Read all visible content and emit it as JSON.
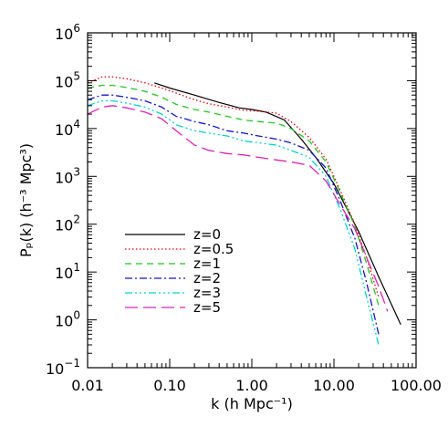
{
  "chart_data": {
    "type": "line",
    "xlabel": "k (h Mpc⁻¹)",
    "ylabel": "Pₚ(k) (h⁻³ Mpc³)",
    "xscale": "log",
    "yscale": "log",
    "xlim": [
      0.01,
      100
    ],
    "ylim": [
      0.1,
      1000000
    ],
    "xticks": [
      0.01,
      0.1,
      1,
      10,
      100
    ],
    "xtick_labels": [
      "0.01",
      "0.10",
      "1.00",
      "10.00",
      "100.00"
    ],
    "yticks": [
      0.1,
      1,
      10,
      100,
      1000,
      10000,
      100000,
      1000000
    ],
    "ytick_labels": [
      {
        "base": "10",
        "exp": "−1"
      },
      {
        "base": "10",
        "exp": "0"
      },
      {
        "base": "10",
        "exp": "1"
      },
      {
        "base": "10",
        "exp": "2"
      },
      {
        "base": "10",
        "exp": "3"
      },
      {
        "base": "10",
        "exp": "4"
      },
      {
        "base": "10",
        "exp": "5"
      },
      {
        "base": "10",
        "exp": "6"
      }
    ],
    "legend_position": "bottom-left",
    "series": [
      {
        "name": "z=0",
        "color": "#000000",
        "dash": "",
        "width": 1.2,
        "x": [
          0.065,
          0.1,
          0.2,
          0.4,
          0.7,
          1.0,
          1.5,
          2.5,
          4,
          6,
          10,
          20,
          35,
          65
        ],
        "y": [
          90000,
          70000,
          50000,
          35000,
          27000,
          25000,
          22000,
          15000,
          6000,
          2500,
          700,
          70,
          8,
          0.8
        ]
      },
      {
        "name": "z=0.5",
        "color": "#e8000b",
        "dash": "1.5,2.5",
        "width": 1.3,
        "x": [
          0.01,
          0.015,
          0.02,
          0.03,
          0.05,
          0.08,
          0.12,
          0.2,
          0.3,
          0.5,
          0.8,
          1.2,
          2,
          3,
          5,
          8,
          12,
          18,
          25,
          35
        ],
        "y": [
          90000,
          120000,
          120000,
          110000,
          90000,
          70000,
          55000,
          40000,
          33000,
          28000,
          24000,
          23000,
          21000,
          14000,
          6500,
          2300,
          500,
          100,
          20,
          3
        ]
      },
      {
        "name": "z=1",
        "color": "#1ec81e",
        "dash": "7,5",
        "width": 1.3,
        "x": [
          0.01,
          0.015,
          0.02,
          0.03,
          0.05,
          0.08,
          0.12,
          0.2,
          0.3,
          0.5,
          0.8,
          1.2,
          2,
          3,
          5,
          8,
          12,
          18,
          25,
          35
        ],
        "y": [
          70000,
          80000,
          80000,
          72000,
          60000,
          45000,
          32000,
          25000,
          22000,
          18000,
          15000,
          14000,
          13000,
          10000,
          5500,
          2000,
          450,
          90,
          15,
          2
        ]
      },
      {
        "name": "z=2",
        "color": "#1515c8",
        "dash": "8,3,2,3",
        "width": 1.3,
        "x": [
          0.01,
          0.015,
          0.02,
          0.03,
          0.05,
          0.08,
          0.12,
          0.2,
          0.3,
          0.5,
          0.8,
          1.2,
          2,
          3,
          5,
          8,
          12,
          18,
          25,
          35
        ],
        "y": [
          40000,
          50000,
          50000,
          45000,
          38000,
          28000,
          18000,
          14000,
          12000,
          9000,
          8000,
          7000,
          6000,
          5000,
          3500,
          1500,
          300,
          50,
          6,
          0.5
        ]
      },
      {
        "name": "z=3",
        "color": "#00d2d2",
        "dash": "8,3,2,3,2,3,2,3",
        "width": 1.3,
        "x": [
          0.01,
          0.015,
          0.02,
          0.03,
          0.05,
          0.08,
          0.12,
          0.2,
          0.3,
          0.5,
          0.8,
          1.2,
          2,
          3,
          5,
          8,
          12,
          18,
          25,
          35
        ],
        "y": [
          30000,
          38000,
          38000,
          34000,
          28000,
          20000,
          12000,
          9000,
          8000,
          7000,
          5500,
          5000,
          4500,
          3500,
          2500,
          1000,
          200,
          30,
          3,
          0.3
        ]
      },
      {
        "name": "z=5",
        "color": "#e020b4",
        "dash": "14,6",
        "width": 1.3,
        "x": [
          0.01,
          0.015,
          0.02,
          0.03,
          0.05,
          0.08,
          0.12,
          0.2,
          0.3,
          0.5,
          0.8,
          1.2,
          2,
          3,
          5,
          8,
          12,
          18,
          25,
          35,
          45
        ],
        "y": [
          20000,
          28000,
          30000,
          27000,
          22000,
          16000,
          9000,
          4500,
          3500,
          3000,
          2800,
          2500,
          2200,
          2000,
          1700,
          800,
          250,
          80,
          20,
          5,
          1.5
        ]
      }
    ]
  }
}
